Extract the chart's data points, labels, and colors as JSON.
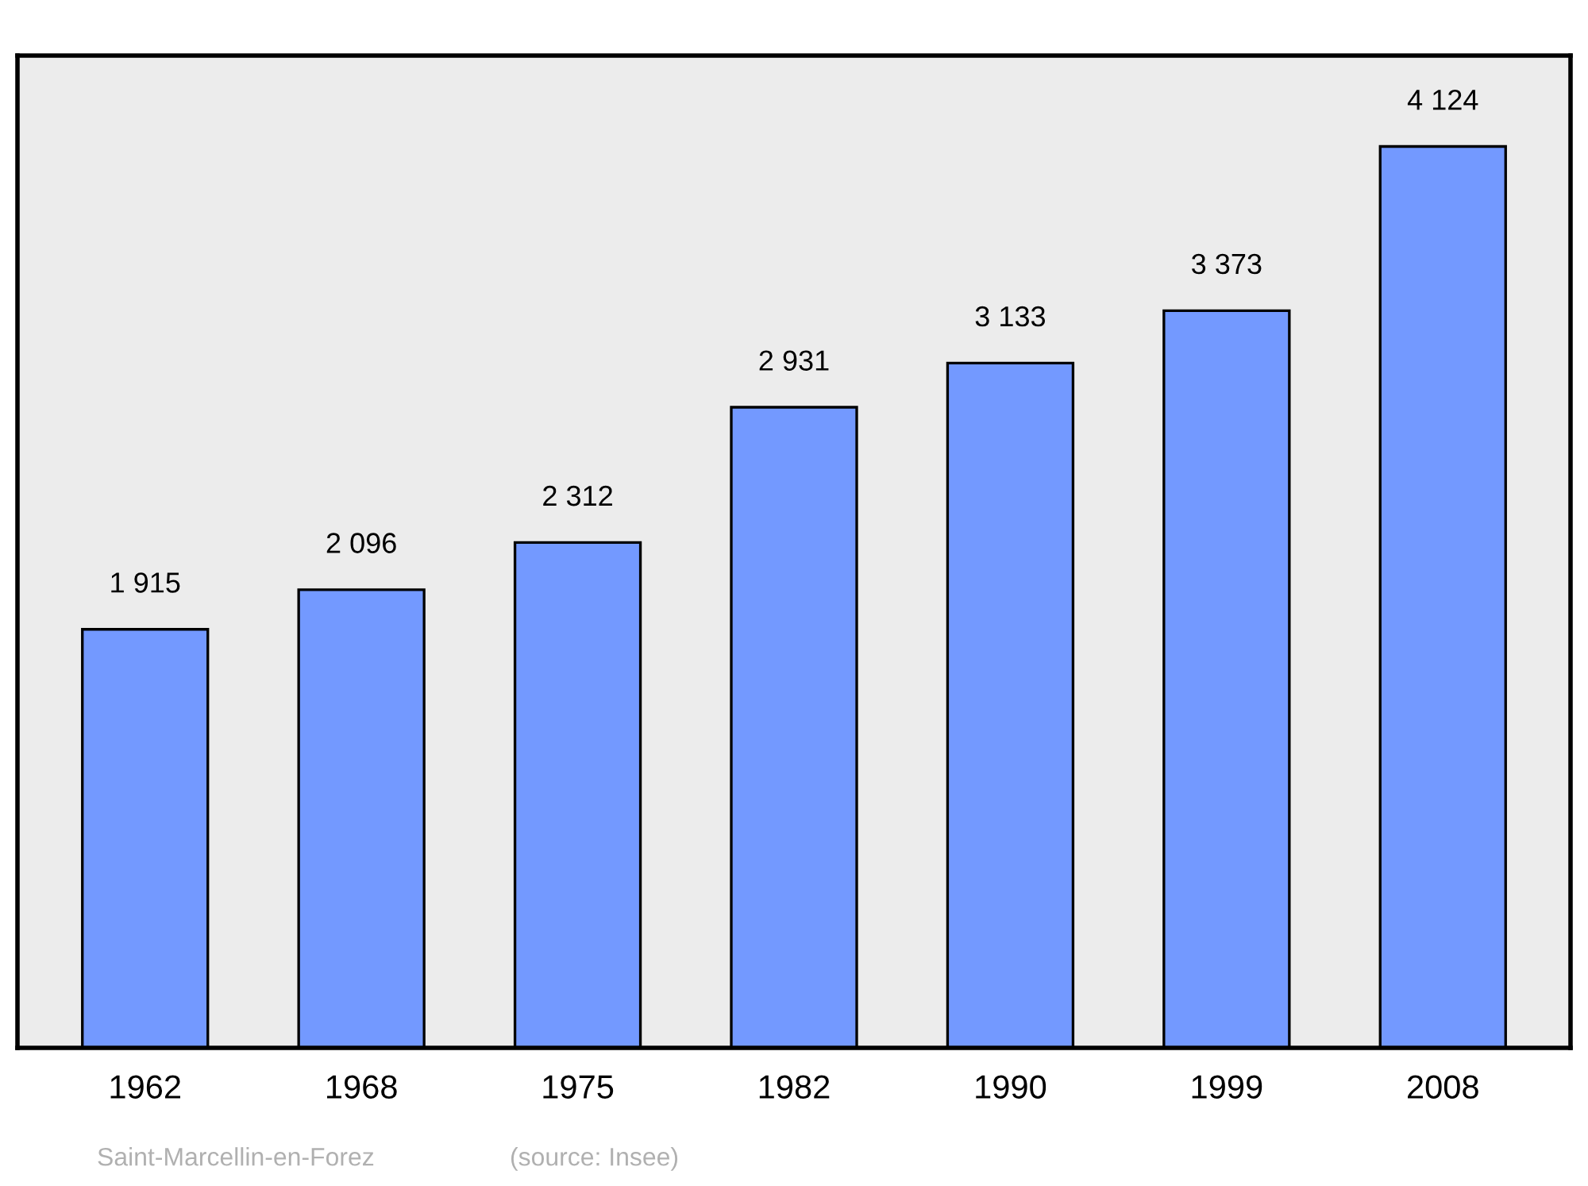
{
  "chart_data": {
    "type": "bar",
    "categories": [
      "1962",
      "1968",
      "1975",
      "1982",
      "1990",
      "1999",
      "2008"
    ],
    "values": [
      1915,
      2096,
      2312,
      2931,
      3133,
      3373,
      4124
    ],
    "value_labels": [
      "1 915",
      "2 096",
      "2 312",
      "2 931",
      "3 133",
      "3 373",
      "4 124"
    ],
    "color": "#7399ff",
    "ylim": [
      0,
      4540
    ],
    "tick_labels": "x",
    "grid": false,
    "legend": false,
    "annotations": [
      "Saint-Marcellin-en-Forez",
      "(source: Insee)"
    ]
  }
}
